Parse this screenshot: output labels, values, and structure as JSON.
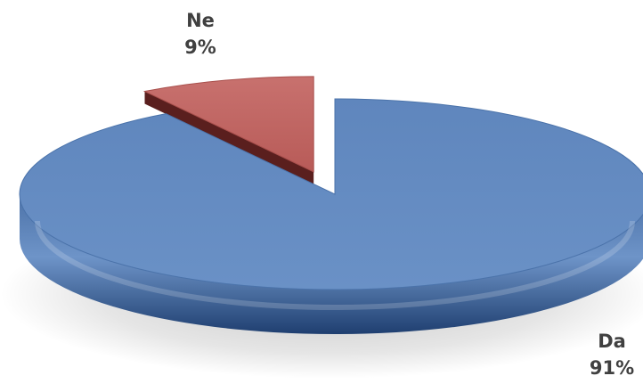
{
  "chart_data": {
    "type": "pie",
    "categories": [
      "Da",
      "Ne"
    ],
    "values": [
      91,
      9
    ],
    "data_labels": [
      {
        "category": "Da",
        "value": "91%"
      },
      {
        "category": "Ne",
        "value": "9%"
      }
    ],
    "colors": {
      "Da": "#5b82b8",
      "Ne": "#c0615f"
    },
    "legend": "none",
    "style": "3d-exploded"
  }
}
